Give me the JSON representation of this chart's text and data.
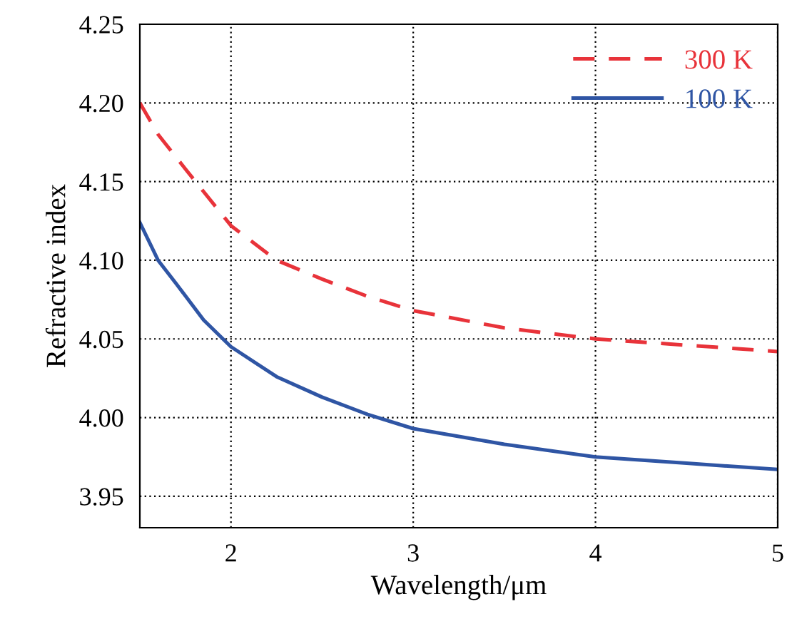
{
  "chart_data": {
    "type": "line",
    "xlabel": "Wavelength/μm",
    "ylabel": "Refractive index",
    "xlim": [
      1.5,
      5
    ],
    "xticks": [
      2,
      3,
      4,
      5
    ],
    "ylim": [
      3.93,
      4.25
    ],
    "yticks": [
      3.95,
      {
        "value": 4.0,
        "label": "4.00"
      },
      4.05,
      {
        "value": 4.1,
        "label": "4.10"
      },
      4.15,
      {
        "value": 4.2,
        "label": "4.20"
      },
      4.25
    ],
    "grid": true,
    "legend": "top right",
    "marker": "none",
    "series": [
      {
        "name": "300 K",
        "color": "#e8333a",
        "line_style": "dashed",
        "x": [
          1.5,
          1.6,
          1.75,
          2.0,
          2.25,
          2.5,
          2.75,
          3.0,
          3.5,
          4.0,
          4.5,
          5.0
        ],
        "values": [
          4.2,
          4.18,
          4.158,
          4.122,
          4.1,
          4.088,
          4.077,
          4.068,
          4.057,
          4.05,
          4.046,
          4.042
        ]
      },
      {
        "name": "100 K",
        "color": "#2f55a4",
        "line_style": "solid",
        "x": [
          1.5,
          1.6,
          1.7,
          1.85,
          2.0,
          2.25,
          2.5,
          2.75,
          3.0,
          3.5,
          4.0,
          4.5,
          5.0
        ],
        "values": [
          4.124,
          4.1,
          4.085,
          4.062,
          4.045,
          4.026,
          4.013,
          4.002,
          3.993,
          3.983,
          3.975,
          3.971,
          3.967
        ]
      }
    ]
  }
}
